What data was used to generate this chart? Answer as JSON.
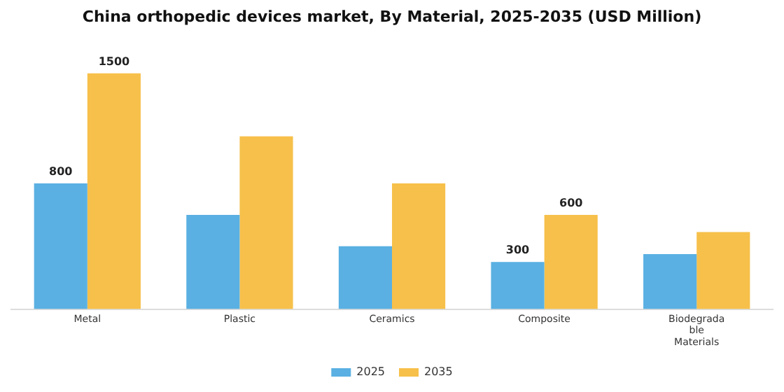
{
  "chart_data": {
    "type": "bar",
    "title": "China orthopedic devices market, By Material, 2025-2035 (USD Million)",
    "categories": [
      "Metal",
      "Plastic",
      "Ceramics",
      "Composite",
      "Biodegradable Materials"
    ],
    "series": [
      {
        "name": "2025",
        "color": "#5ab0e2",
        "values": [
          800,
          600,
          400,
          300,
          350
        ],
        "value_labels": [
          "800",
          null,
          null,
          "300",
          null
        ]
      },
      {
        "name": "2035",
        "color": "#f7c04a",
        "values": [
          1500,
          1100,
          800,
          600,
          490
        ],
        "value_labels": [
          "1500",
          null,
          null,
          "600",
          null
        ]
      }
    ],
    "legend": "bottom",
    "grid": false,
    "tick_labels": "x"
  }
}
